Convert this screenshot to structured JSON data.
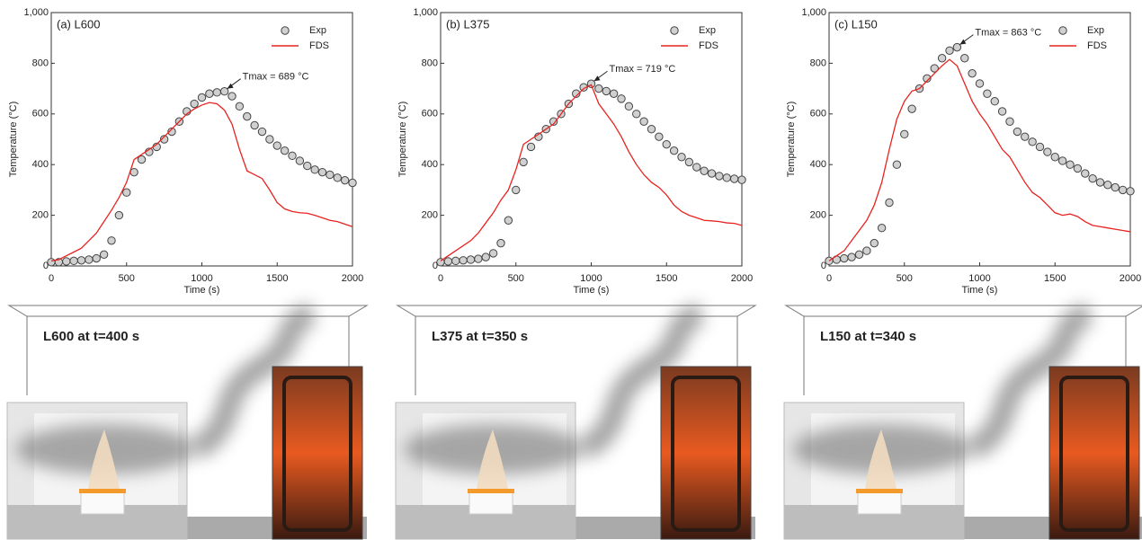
{
  "chart_data": [
    {
      "type": "line",
      "title": "(a) L600",
      "xlabel": "Time (s)",
      "ylabel": "Temperature (°C)",
      "annotation": "Tmax = 689 °C",
      "x": [
        0,
        50,
        100,
        150,
        200,
        250,
        300,
        350,
        400,
        450,
        500,
        550,
        600,
        650,
        700,
        750,
        800,
        850,
        900,
        950,
        1000,
        1050,
        1100,
        1150,
        1200,
        1250,
        1300,
        1350,
        1400,
        1450,
        1500,
        1550,
        1600,
        1650,
        1700,
        1750,
        1800,
        1850,
        1900,
        1950,
        2000
      ],
      "xlim": [
        0,
        2000
      ],
      "xticks": [
        0,
        500,
        1000,
        1500,
        2000
      ],
      "ylim": [
        0,
        1000
      ],
      "yticks": [
        0,
        200,
        400,
        600,
        800,
        {
          "value": 1000,
          "label": "1,000"
        }
      ],
      "legend": "upper right",
      "series": [
        {
          "name": "Exp",
          "mode": "markers",
          "color": "#d0d0d0",
          "values": [
            15,
            15,
            18,
            20,
            22,
            25,
            30,
            45,
            100,
            200,
            290,
            370,
            420,
            450,
            470,
            500,
            530,
            570,
            610,
            640,
            665,
            680,
            685,
            689,
            670,
            630,
            590,
            555,
            530,
            500,
            475,
            455,
            435,
            415,
            395,
            380,
            370,
            360,
            348,
            338,
            328
          ]
        },
        {
          "name": "FDS",
          "mode": "line",
          "color": "#e8231f",
          "values": [
            20,
            25,
            40,
            55,
            70,
            100,
            130,
            175,
            220,
            270,
            330,
            420,
            440,
            460,
            480,
            510,
            540,
            570,
            600,
            620,
            635,
            645,
            640,
            615,
            560,
            460,
            375,
            360,
            345,
            300,
            250,
            225,
            215,
            210,
            208,
            200,
            190,
            180,
            175,
            165,
            155
          ]
        }
      ]
    },
    {
      "type": "line",
      "title": "(b) L375",
      "xlabel": "Time (s)",
      "ylabel": "Temperature (°C)",
      "annotation": "Tmax = 719 °C",
      "x": [
        0,
        50,
        100,
        150,
        200,
        250,
        300,
        350,
        400,
        450,
        500,
        550,
        600,
        650,
        700,
        750,
        800,
        850,
        900,
        950,
        1000,
        1050,
        1100,
        1150,
        1200,
        1250,
        1300,
        1350,
        1400,
        1450,
        1500,
        1550,
        1600,
        1650,
        1700,
        1750,
        1800,
        1850,
        1900,
        1950,
        2000
      ],
      "xlim": [
        0,
        2000
      ],
      "xticks": [
        0,
        500,
        1000,
        1500,
        2000
      ],
      "ylim": [
        0,
        1000
      ],
      "yticks": [
        0,
        200,
        400,
        600,
        800,
        {
          "value": 1000,
          "label": "1,000"
        }
      ],
      "legend": "upper right",
      "series": [
        {
          "name": "Exp",
          "mode": "markers",
          "color": "#d0d0d0",
          "values": [
            15,
            18,
            20,
            22,
            25,
            28,
            35,
            50,
            90,
            180,
            300,
            410,
            470,
            510,
            540,
            570,
            600,
            640,
            680,
            705,
            719,
            700,
            690,
            680,
            660,
            630,
            600,
            570,
            540,
            510,
            480,
            455,
            430,
            410,
            390,
            375,
            365,
            355,
            348,
            344,
            340
          ]
        },
        {
          "name": "FDS",
          "mode": "line",
          "color": "#e8231f",
          "values": [
            20,
            40,
            60,
            80,
            100,
            130,
            170,
            210,
            260,
            300,
            380,
            480,
            500,
            520,
            540,
            560,
            600,
            640,
            670,
            700,
            715,
            640,
            600,
            560,
            510,
            450,
            400,
            360,
            330,
            310,
            280,
            240,
            215,
            200,
            190,
            180,
            178,
            175,
            170,
            168,
            160
          ]
        }
      ]
    },
    {
      "type": "line",
      "title": "(c) L150",
      "xlabel": "Time (s)",
      "ylabel": "Temperature (°C)",
      "annotation": "Tmax = 863 °C",
      "x": [
        0,
        50,
        100,
        150,
        200,
        250,
        300,
        350,
        400,
        450,
        500,
        550,
        600,
        650,
        700,
        750,
        800,
        850,
        900,
        950,
        1000,
        1050,
        1100,
        1150,
        1200,
        1250,
        1300,
        1350,
        1400,
        1450,
        1500,
        1550,
        1600,
        1650,
        1700,
        1750,
        1800,
        1850,
        1900,
        1950,
        2000
      ],
      "xlim": [
        0,
        2000
      ],
      "xticks": [
        0,
        500,
        1000,
        1500,
        2000
      ],
      "ylim": [
        0,
        1000
      ],
      "yticks": [
        0,
        200,
        400,
        600,
        800,
        {
          "value": 1000,
          "label": "1,000"
        }
      ],
      "legend": "upper right",
      "series": [
        {
          "name": "Exp",
          "mode": "markers",
          "color": "#d0d0d0",
          "values": [
            20,
            25,
            30,
            35,
            45,
            60,
            90,
            150,
            250,
            400,
            520,
            620,
            700,
            740,
            780,
            820,
            850,
            863,
            820,
            760,
            720,
            680,
            650,
            610,
            570,
            530,
            510,
            490,
            470,
            450,
            430,
            415,
            400,
            385,
            365,
            345,
            330,
            320,
            310,
            300,
            295
          ]
        },
        {
          "name": "FDS",
          "mode": "line",
          "color": "#e8231f",
          "values": [
            20,
            40,
            60,
            100,
            140,
            180,
            240,
            330,
            460,
            580,
            650,
            690,
            700,
            730,
            760,
            790,
            815,
            790,
            720,
            650,
            600,
            560,
            510,
            460,
            430,
            380,
            330,
            290,
            270,
            240,
            210,
            200,
            205,
            195,
            175,
            160,
            155,
            150,
            145,
            140,
            135
          ]
        }
      ]
    }
  ],
  "snapshots": [
    {
      "caption": "L600 at t=400 s"
    },
    {
      "caption": "L375 at t=350 s"
    },
    {
      "caption": "L150 at t=340 s"
    }
  ]
}
